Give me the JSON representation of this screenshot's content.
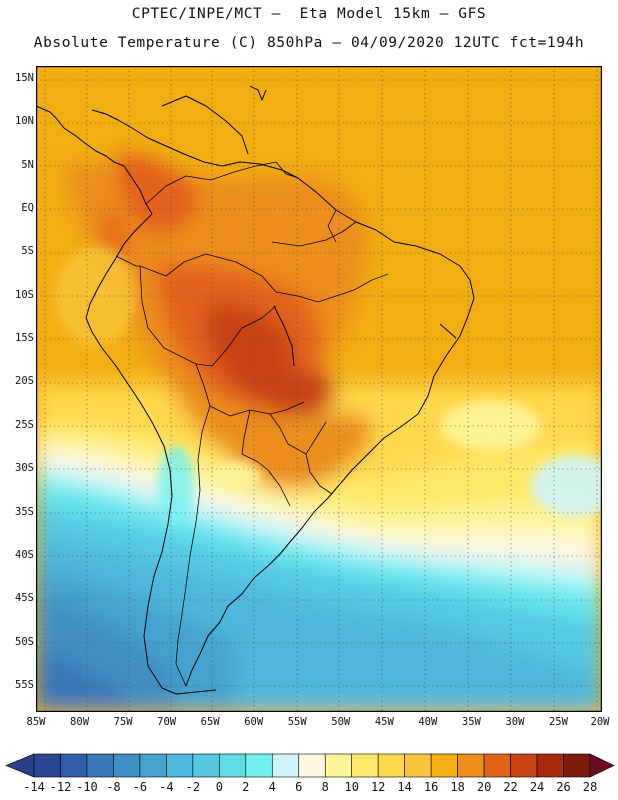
{
  "header": {
    "line1": "CPTEC/INPE/MCT –  Eta Model 15km – GFS",
    "line2": "Absolute Temperature (C) 850hPa – 04/09/2020 12UTC fct=194h"
  },
  "map": {
    "lat_labels": [
      "15N",
      "10N",
      "5N",
      "EQ",
      "5S",
      "10S",
      "15S",
      "20S",
      "25S",
      "30S",
      "35S",
      "40S",
      "45S",
      "50S",
      "55S"
    ],
    "lat_values": [
      15,
      10,
      5,
      0,
      -5,
      -10,
      -15,
      -20,
      -25,
      -30,
      -35,
      -40,
      -45,
      -50,
      -55
    ],
    "lon_labels": [
      "85W",
      "80W",
      "75W",
      "70W",
      "65W",
      "60W",
      "55W",
      "50W",
      "45W",
      "40W",
      "35W",
      "30W",
      "25W",
      "20W"
    ],
    "lon_values": [
      -85,
      -80,
      -75,
      -70,
      -65,
      -60,
      -55,
      -50,
      -45,
      -40,
      -35,
      -30,
      -25,
      -20
    ],
    "extent": {
      "lon_min": -85,
      "lon_max": -20,
      "lat_min": -58,
      "lat_max": 16.5
    },
    "frame_color": "#000000",
    "grid": "dotted",
    "coastline_color": "#000000"
  },
  "colorbar": {
    "labels": [
      "-14",
      "-12",
      "-10",
      "-8",
      "-6",
      "-4",
      "-2",
      "0",
      "2",
      "4",
      "6",
      "8",
      "10",
      "12",
      "14",
      "16",
      "18",
      "20",
      "22",
      "24",
      "26",
      "28"
    ],
    "colors": [
      "#2a4794",
      "#2f5fa8",
      "#3a78b8",
      "#3f8ec4",
      "#45a3cf",
      "#4db8db",
      "#55c9e3",
      "#60dde9",
      "#72f0f0",
      "#cff5fa",
      "#fff8e0",
      "#fff59a",
      "#ffe86a",
      "#ffd94e",
      "#f9c43a",
      "#f3ae12",
      "#ec8d1c",
      "#e2621a",
      "#c84314",
      "#a82a0d",
      "#7c1c0c"
    ],
    "under_color": "#2a3f8a",
    "over_color": "#6a0c22"
  }
}
